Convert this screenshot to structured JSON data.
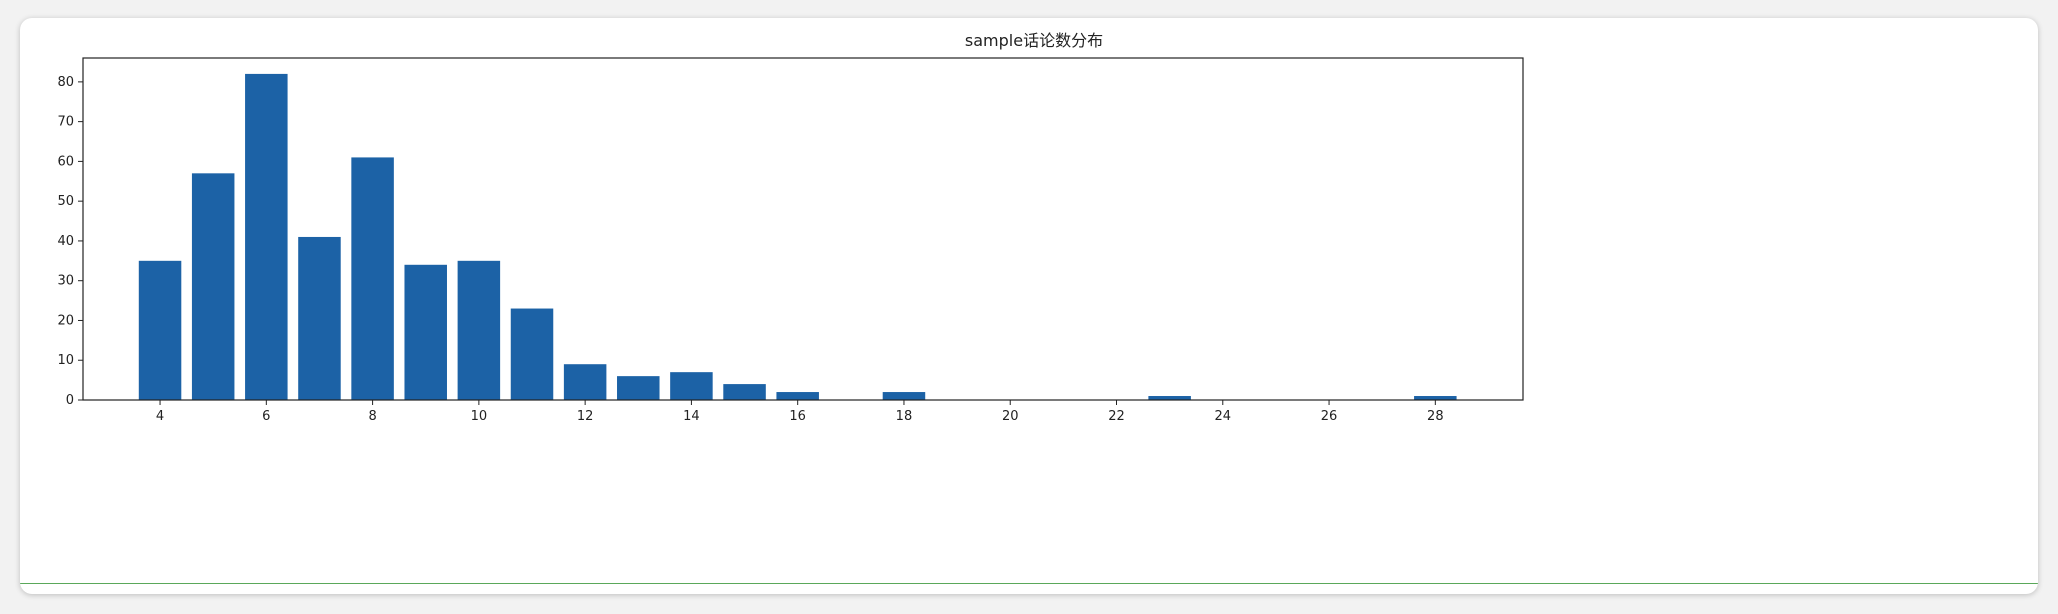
{
  "chart_data": {
    "type": "bar",
    "title": "sample话论数分布",
    "xlabel": "",
    "ylabel": "",
    "x": [
      4,
      5,
      6,
      7,
      8,
      9,
      10,
      11,
      12,
      13,
      14,
      15,
      16,
      18,
      23,
      28
    ],
    "values": [
      35,
      57,
      82,
      41,
      61,
      34,
      35,
      23,
      9,
      6,
      7,
      4,
      2,
      2,
      1,
      1
    ],
    "xlim": [
      2.55,
      29.65
    ],
    "ylim": [
      0,
      86
    ],
    "xticks": [
      4,
      6,
      8,
      10,
      12,
      14,
      16,
      18,
      20,
      22,
      24,
      26,
      28
    ],
    "yticks": [
      0,
      10,
      20,
      30,
      40,
      50,
      60,
      70,
      80
    ],
    "grid": false,
    "bar_color": "#1c62a6"
  }
}
